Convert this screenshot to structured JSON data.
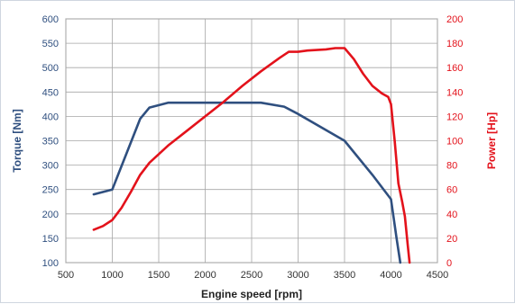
{
  "chart_data": {
    "type": "line",
    "xlabel": "Engine speed [rpm]",
    "ylabel_left": "Torque [Nm]",
    "ylabel_right": "Power [Hp]",
    "xlim": [
      500,
      4500
    ],
    "ylim_left": [
      100,
      600
    ],
    "ylim_right": [
      0,
      200
    ],
    "x_ticks": [
      "500",
      "1000",
      "1500",
      "2000",
      "2500",
      "3000",
      "3500",
      "4000",
      "4500"
    ],
    "y_left_ticks": [
      "100",
      "150",
      "200",
      "250",
      "300",
      "350",
      "400",
      "450",
      "500",
      "550",
      "600"
    ],
    "y_right_ticks": [
      "0",
      "20",
      "40",
      "60",
      "80",
      "100",
      "120",
      "140",
      "160",
      "180",
      "200"
    ],
    "grid": true,
    "series": [
      {
        "axis": "left",
        "color": "#2f4f7f",
        "points": [
          [
            800,
            240
          ],
          [
            1000,
            250
          ],
          [
            1300,
            395
          ],
          [
            1400,
            418
          ],
          [
            1600,
            428
          ],
          [
            2000,
            428
          ],
          [
            2500,
            428
          ],
          [
            2600,
            428
          ],
          [
            2850,
            420
          ],
          [
            3000,
            405
          ],
          [
            3500,
            350
          ],
          [
            3800,
            280
          ],
          [
            4000,
            230
          ],
          [
            4060,
            150
          ],
          [
            4100,
            100
          ]
        ]
      },
      {
        "axis": "right",
        "color": "#e3121b",
        "points": [
          [
            800,
            27
          ],
          [
            900,
            30
          ],
          [
            1000,
            35
          ],
          [
            1100,
            45
          ],
          [
            1200,
            58
          ],
          [
            1300,
            72
          ],
          [
            1400,
            82
          ],
          [
            1600,
            96
          ],
          [
            1800,
            108
          ],
          [
            2000,
            120
          ],
          [
            2200,
            132
          ],
          [
            2400,
            145
          ],
          [
            2600,
            157
          ],
          [
            2800,
            168
          ],
          [
            2900,
            173
          ],
          [
            3000,
            173
          ],
          [
            3100,
            174
          ],
          [
            3300,
            175
          ],
          [
            3400,
            176
          ],
          [
            3500,
            176
          ],
          [
            3600,
            167
          ],
          [
            3700,
            155
          ],
          [
            3800,
            145
          ],
          [
            3900,
            139
          ],
          [
            3970,
            136
          ],
          [
            4000,
            130
          ],
          [
            4040,
            100
          ],
          [
            4080,
            65
          ],
          [
            4120,
            50
          ],
          [
            4150,
            38
          ],
          [
            4180,
            15
          ],
          [
            4200,
            0
          ]
        ]
      }
    ]
  }
}
